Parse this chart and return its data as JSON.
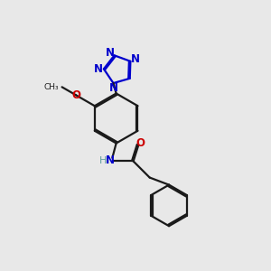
{
  "bg_color": "#e8e8e8",
  "bond_color": "#1a1a1a",
  "N_color": "#0000cc",
  "O_color": "#cc0000",
  "NH_color": "#008080",
  "H_color": "#5f9ea0",
  "lw": 1.6,
  "dbg": 0.035,
  "fs": 8.5,
  "xlim": [
    -0.5,
    4.5
  ],
  "ylim": [
    -3.8,
    2.4
  ]
}
